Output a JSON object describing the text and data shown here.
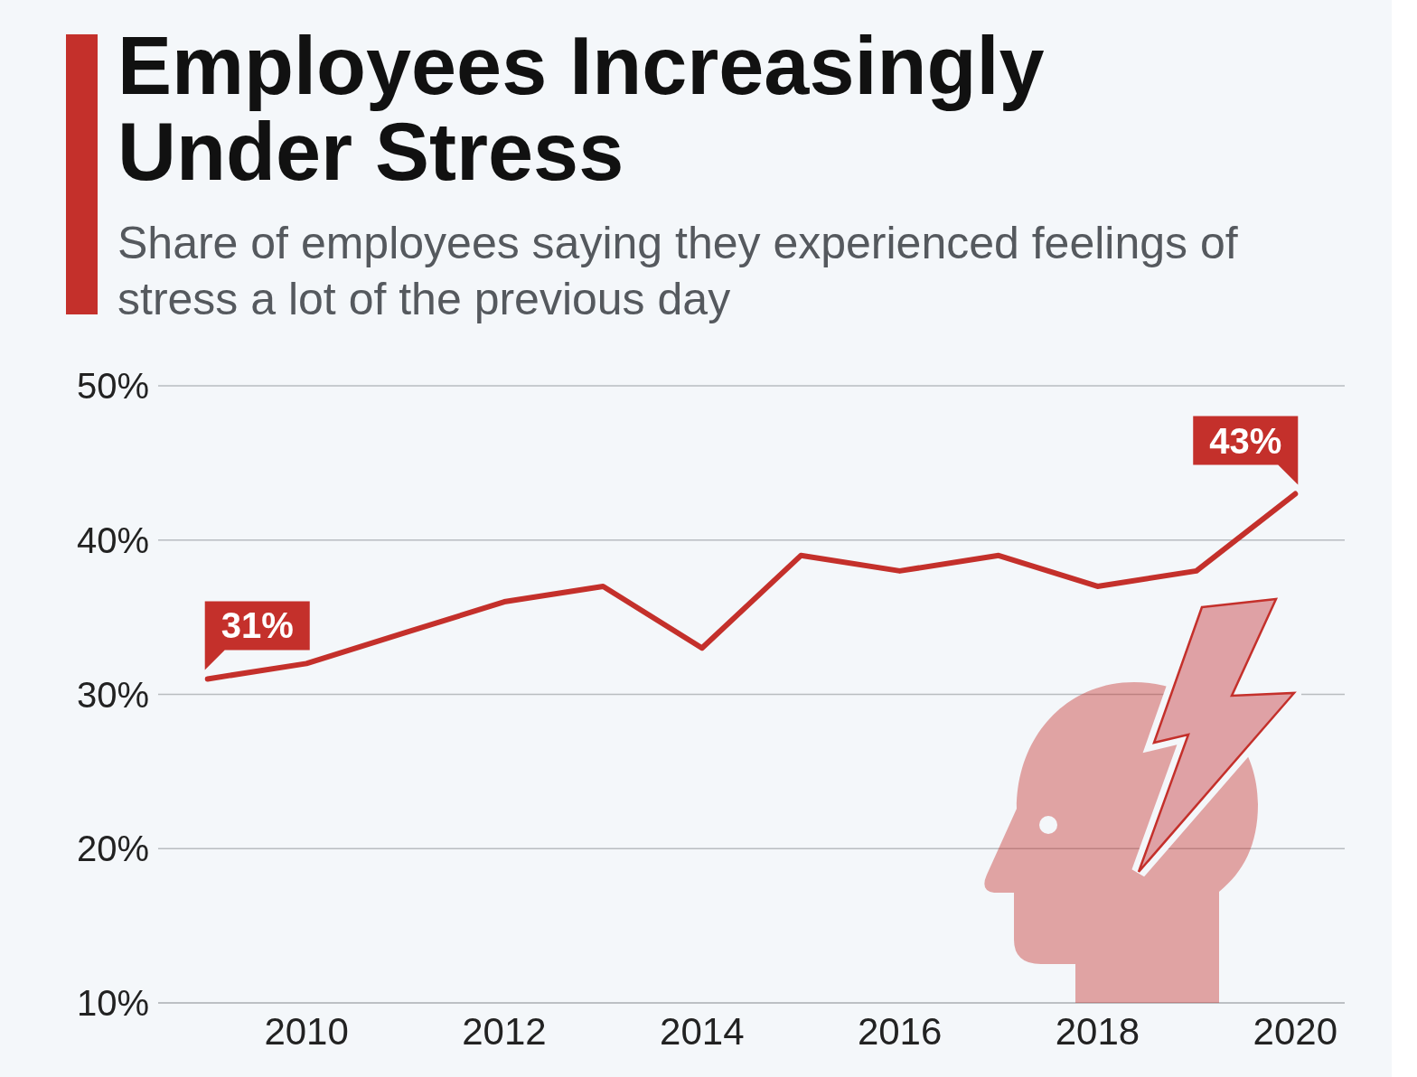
{
  "chart_data": {
    "type": "line",
    "title": "Employees Increasingly Under Stress",
    "subtitle": "Share of employees saying they experienced feelings of stress a lot of the previous day",
    "x": [
      2009,
      2010,
      2011,
      2012,
      2013,
      2014,
      2015,
      2016,
      2017,
      2018,
      2019,
      2020
    ],
    "series": [
      {
        "color": "#c4302b",
        "values": [
          31,
          32,
          34,
          36,
          37,
          33,
          39,
          38,
          39,
          37,
          38,
          43
        ],
        "value_labels": [
          "31%",
          null,
          null,
          null,
          null,
          null,
          null,
          null,
          null,
          null,
          null,
          "43%"
        ]
      }
    ],
    "xlim": [
      2008.5,
      2020.5
    ],
    "xticks": [
      2010,
      2012,
      2014,
      2016,
      2018,
      2020
    ],
    "ylim": [
      10,
      50
    ],
    "yticks": [
      {
        "value": 10,
        "label": "10%"
      },
      {
        "value": 20,
        "label": "20%"
      },
      {
        "value": 30,
        "label": "30%"
      },
      {
        "value": 40,
        "label": "40%"
      },
      {
        "value": 50,
        "label": "50%"
      }
    ],
    "grid": "y",
    "line_style": "solid"
  }
}
